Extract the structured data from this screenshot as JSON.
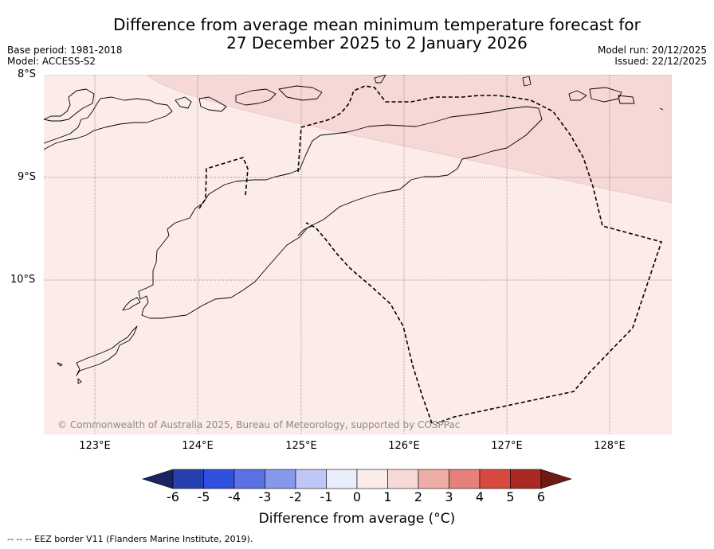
{
  "title": {
    "line1": "Difference from average mean minimum temperature forecast for",
    "line2": "27 December 2025 to 2 January 2026"
  },
  "meta": {
    "base_period": "Base period: 1981-2018",
    "model": "Model: ACCESS-S2",
    "model_run": "Model run: 20/12/2025",
    "issued": "Issued: 22/12/2025"
  },
  "map": {
    "extent": {
      "lon_min": 122.56,
      "lon_max": 128.6,
      "lat_min": -11.5,
      "lat_max": -8.0
    },
    "lat_labels": [
      "8°S",
      "9°S",
      "10°S"
    ],
    "lon_labels": [
      "123°E",
      "124°E",
      "125°E",
      "126°E",
      "127°E",
      "128°E"
    ],
    "colors": {
      "anomaly_0_1": "#fbebe9",
      "anomaly_1_2": "#f6d8d6",
      "coastline": "#000000",
      "gridline": "#7a6060"
    },
    "copyright": "© Commonwealth of Australia 2025, Bureau of Meteorology, supported by COSPPac"
  },
  "colorbar": {
    "ticks": [
      "-6",
      "-5",
      "-4",
      "-3",
      "-2",
      "-1",
      "0",
      "1",
      "2",
      "3",
      "4",
      "5",
      "6"
    ],
    "colors": [
      "#1b2463",
      "#2640b0",
      "#3050e0",
      "#5a72e4",
      "#8598ea",
      "#bfc8f4",
      "#e9ecfb",
      "#fbebe9",
      "#f6d8d6",
      "#eeaca7",
      "#e5807a",
      "#d84a40",
      "#a82a22",
      "#6e1a16"
    ],
    "label": "Difference from average (°C)"
  },
  "footnote": "--  --  -- EEZ border V11 (Flanders Marine Institute, 2019)."
}
